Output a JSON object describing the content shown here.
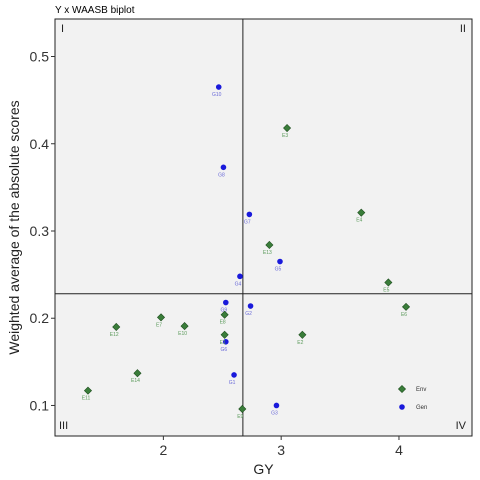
{
  "chart_data": {
    "type": "scatter",
    "title": "Y x WAASB biplot",
    "xlabel": "GY",
    "ylabel": "Weighted average of the absolute scores",
    "xlim": [
      1.08,
      4.62
    ],
    "ylim": [
      0.065,
      0.543
    ],
    "xticks": [
      2,
      3,
      4
    ],
    "yticks": [
      0.1,
      0.2,
      0.3,
      0.4,
      0.5
    ],
    "xtick_labels": [
      "2",
      "3",
      "4"
    ],
    "ytick_labels": [
      "0.1",
      "0.2",
      "0.3",
      "0.4",
      "0.5"
    ],
    "reference_lines": {
      "x": 2.675,
      "y": 0.228
    },
    "quadrant_labels": {
      "tl": "I",
      "tr": "II",
      "bl": "III",
      "br": "IV"
    },
    "grid": false,
    "legend": {
      "position": "bottom-right",
      "items": [
        {
          "name": "Env",
          "color": "#3a7d3a",
          "shape": "diamond"
        },
        {
          "name": "Gen",
          "color": "#1a1adb",
          "shape": "circle"
        }
      ]
    },
    "series": [
      {
        "name": "Env",
        "color": "#3a7d3a",
        "label_color": "#5a9a5a",
        "shape": "diamond",
        "points": [
          {
            "label": "E1",
            "x": 2.52,
            "y": 0.181
          },
          {
            "label": "E2",
            "x": 3.18,
            "y": 0.181
          },
          {
            "label": "E3",
            "x": 3.05,
            "y": 0.418
          },
          {
            "label": "E4",
            "x": 3.68,
            "y": 0.321
          },
          {
            "label": "E5",
            "x": 3.91,
            "y": 0.241
          },
          {
            "label": "E6",
            "x": 4.06,
            "y": 0.213
          },
          {
            "label": "E7",
            "x": 1.98,
            "y": 0.201
          },
          {
            "label": "E8",
            "x": 2.52,
            "y": 0.204
          },
          {
            "label": "E9",
            "x": 2.67,
            "y": 0.096
          },
          {
            "label": "E10",
            "x": 2.18,
            "y": 0.191
          },
          {
            "label": "E11",
            "x": 1.36,
            "y": 0.117
          },
          {
            "label": "E12",
            "x": 1.6,
            "y": 0.19
          },
          {
            "label": "E13",
            "x": 2.9,
            "y": 0.284
          },
          {
            "label": "E14",
            "x": 1.78,
            "y": 0.137
          }
        ]
      },
      {
        "name": "Gen",
        "color": "#1a1adb",
        "label_color": "#6a6ad8",
        "shape": "circle",
        "points": [
          {
            "label": "G1",
            "x": 2.6,
            "y": 0.135
          },
          {
            "label": "G2",
            "x": 2.74,
            "y": 0.214
          },
          {
            "label": "G3",
            "x": 2.96,
            "y": 0.1
          },
          {
            "label": "G4",
            "x": 2.65,
            "y": 0.248
          },
          {
            "label": "G5",
            "x": 2.99,
            "y": 0.265
          },
          {
            "label": "G6",
            "x": 2.53,
            "y": 0.173
          },
          {
            "label": "G7",
            "x": 2.73,
            "y": 0.319
          },
          {
            "label": "G8",
            "x": 2.51,
            "y": 0.373
          },
          {
            "label": "G9",
            "x": 2.53,
            "y": 0.218
          },
          {
            "label": "G10",
            "x": 2.47,
            "y": 0.465
          }
        ]
      }
    ]
  }
}
